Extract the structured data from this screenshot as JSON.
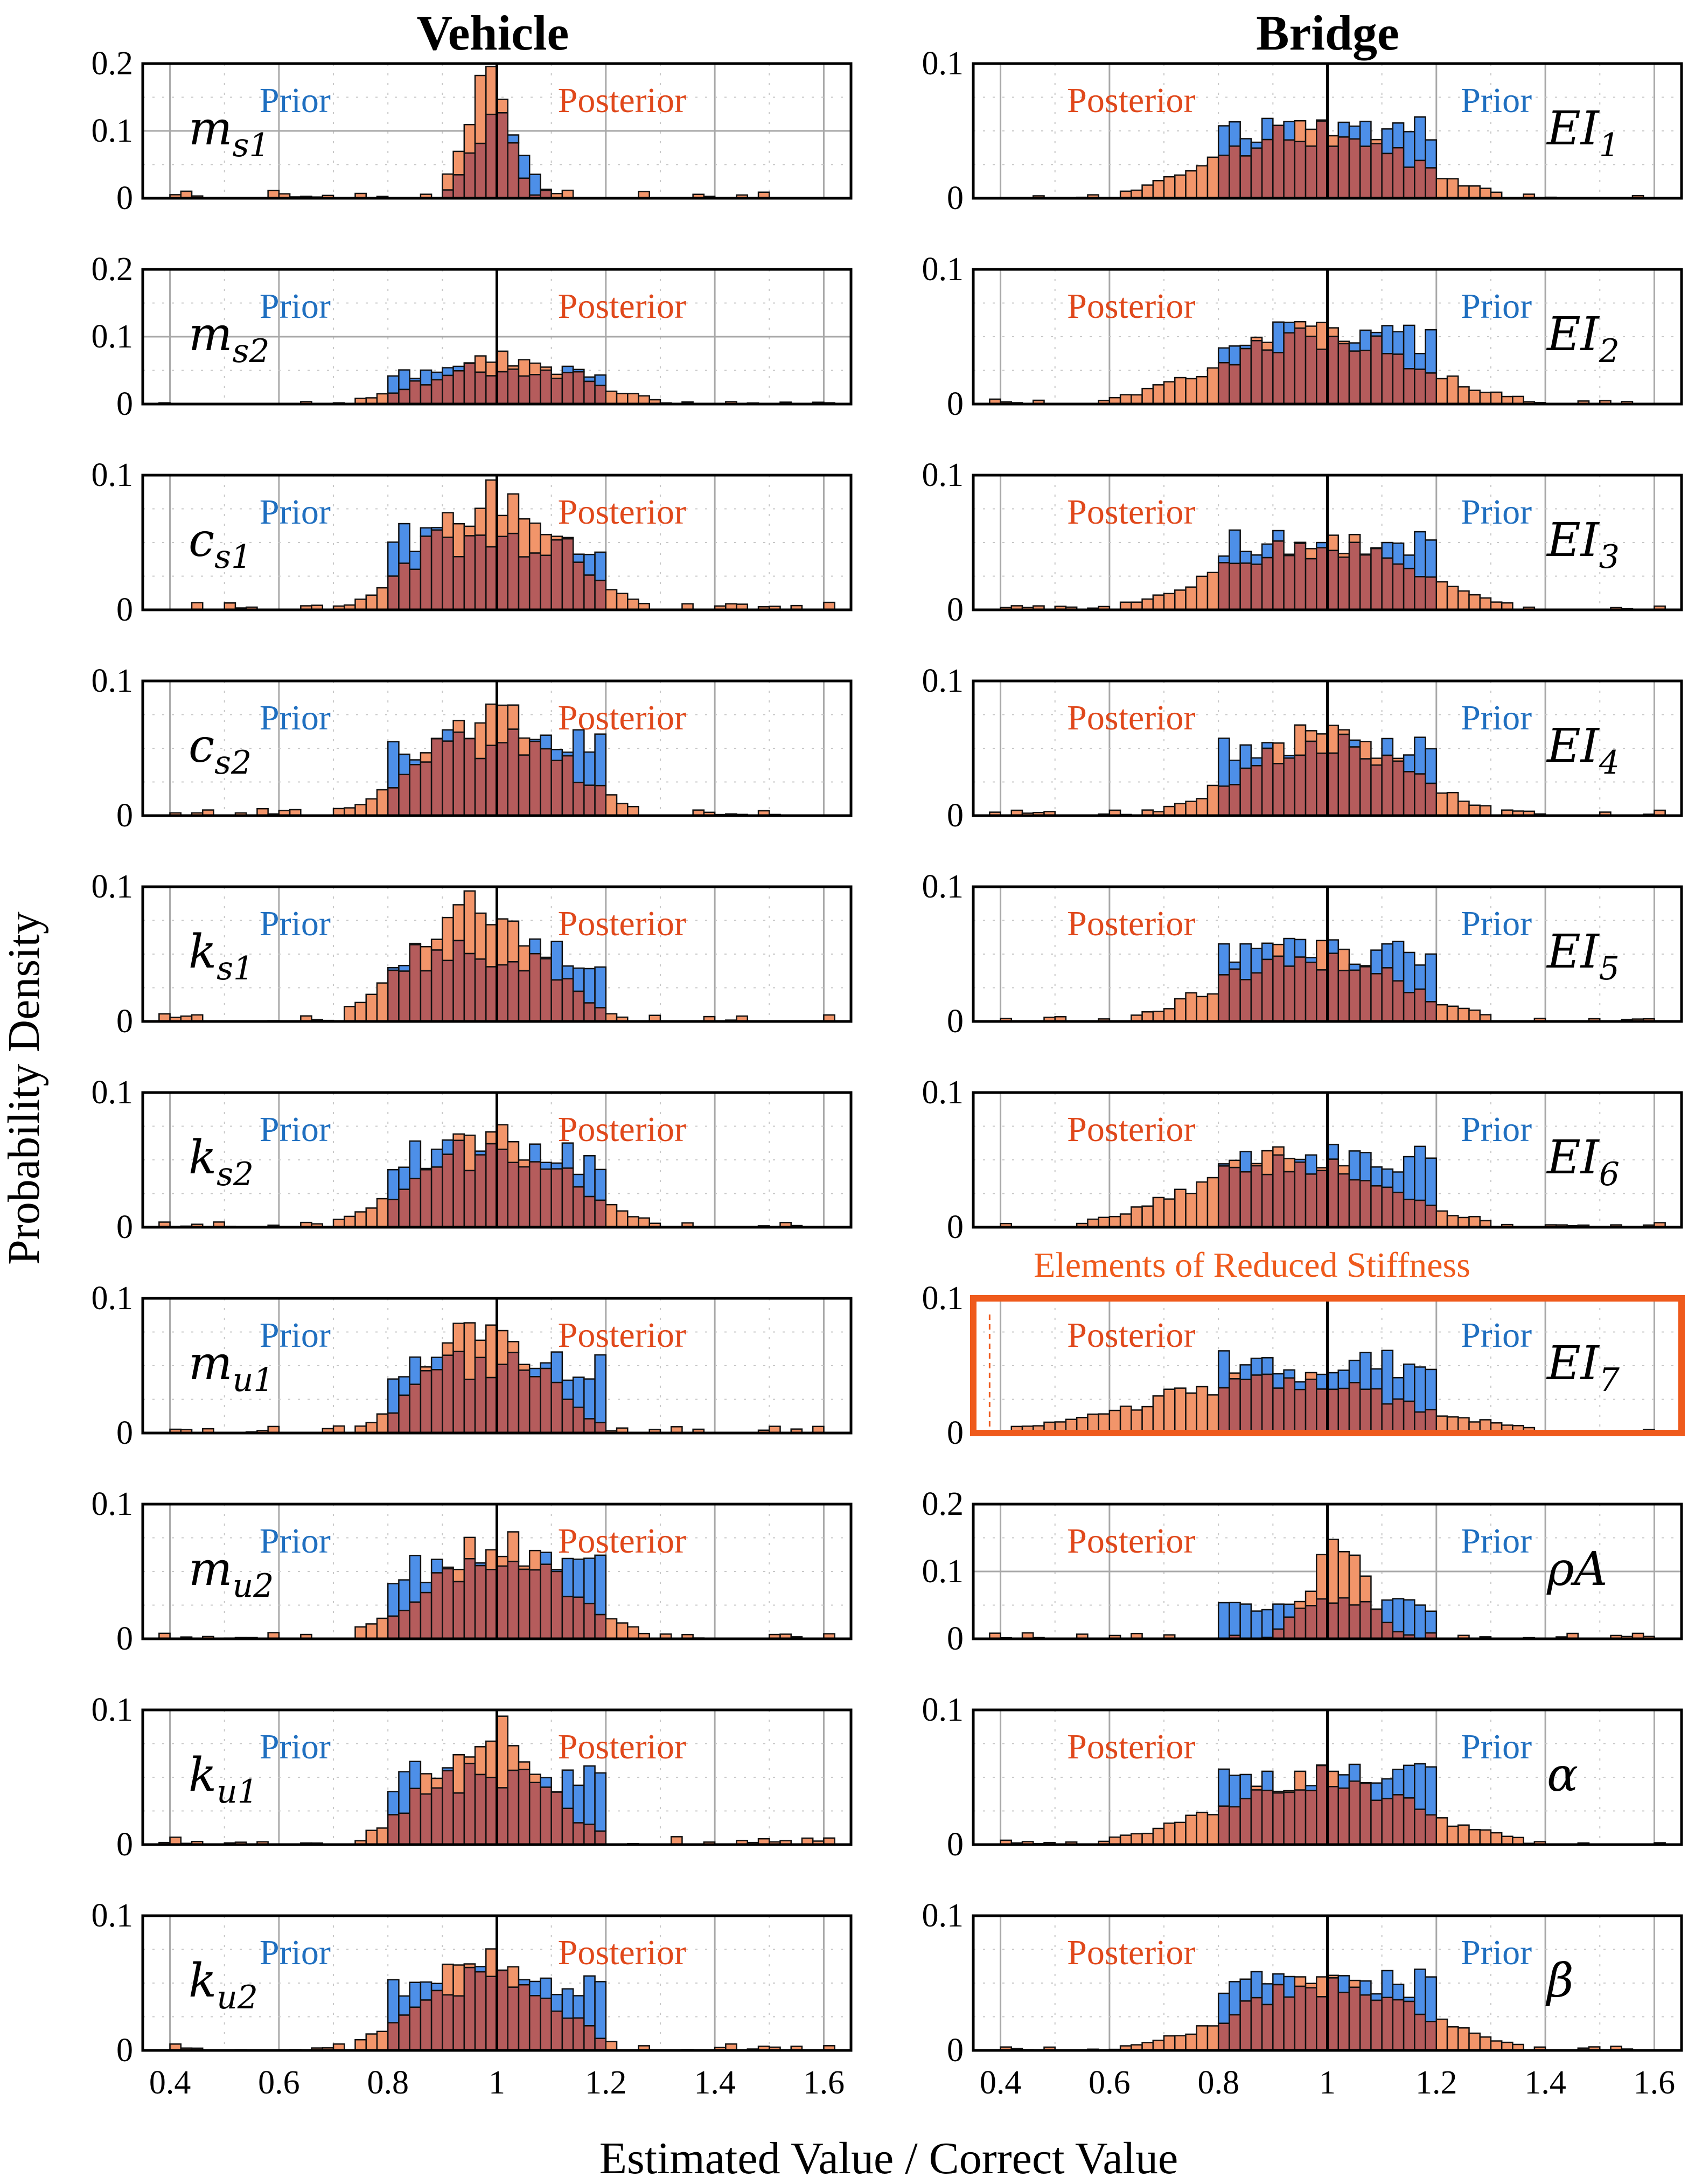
{
  "figure": {
    "columns": [
      {
        "key": "vehicle",
        "title": "Vehicle"
      },
      {
        "key": "bridge",
        "title": "Bridge"
      }
    ],
    "xlabel": "Estimated Value / Correct Value",
    "ylabel": "Probability Density",
    "highlight_label": "Elements of Reduced Stiffness"
  },
  "colors": {
    "prior": "#4d8fe8",
    "posterior": "#f2956a",
    "overlap": "#b55c5c",
    "prior_text": "#1f6fc0",
    "posterior_text": "#e0481b",
    "highlight": "#ef5a1c",
    "grid": "#a8a8a8"
  },
  "chart_data": {
    "type": "bar",
    "subtype": "overlaid histograms",
    "x_ticks": [
      0.4,
      0.6,
      0.8,
      1,
      1.2,
      1.4,
      1.6
    ],
    "x_tick_labels": [
      "0.4",
      "0.6",
      "0.8",
      "1",
      "1.2",
      "1.4",
      "1.6"
    ],
    "xlim": [
      0.35,
      1.65
    ],
    "panels": [
      {
        "col": 0,
        "row": 0,
        "param": "m",
        "sub": "s1",
        "prior_label": "Prior",
        "posterior_label": "Posterior",
        "ylim": [
          0,
          0.2
        ],
        "y_ticks": [
          "0.2",
          "0.1",
          "0"
        ],
        "prior": {
          "min": 0.9,
          "max": 1.1,
          "shape": "tri",
          "peak": 0.125
        },
        "posterior": {
          "mean": 0.98,
          "sd": 0.04,
          "peak": 0.17
        }
      },
      {
        "col": 0,
        "row": 1,
        "param": "m",
        "sub": "s2",
        "prior_label": "Prior",
        "posterior_label": "Posterior",
        "ylim": [
          0,
          0.2
        ],
        "y_ticks": [
          "0.2",
          "0.1",
          "0"
        ],
        "prior": {
          "min": 0.8,
          "max": 1.2,
          "shape": "flat",
          "peak": 0.05
        },
        "posterior": {
          "mean": 1.02,
          "sd": 0.13,
          "peak": 0.068
        }
      },
      {
        "col": 0,
        "row": 2,
        "param": "c",
        "sub": "s1",
        "prior_label": "Prior",
        "posterior_label": "Posterior",
        "ylim": [
          0,
          0.1
        ],
        "y_ticks": [
          "0.1",
          "0"
        ],
        "prior": {
          "min": 0.8,
          "max": 1.2,
          "shape": "flat",
          "peak": 0.052
        },
        "posterior": {
          "mean": 1.0,
          "sd": 0.12,
          "peak": 0.082
        }
      },
      {
        "col": 0,
        "row": 3,
        "param": "c",
        "sub": "s2",
        "prior_label": "Prior",
        "posterior_label": "Posterior",
        "ylim": [
          0,
          0.1
        ],
        "y_ticks": [
          "0.1",
          "0"
        ],
        "prior": {
          "min": 0.8,
          "max": 1.2,
          "shape": "flat",
          "peak": 0.052
        },
        "posterior": {
          "mean": 0.99,
          "sd": 0.12,
          "peak": 0.075
        }
      },
      {
        "col": 0,
        "row": 4,
        "param": "k",
        "sub": "s1",
        "prior_label": "Prior",
        "posterior_label": "Posterior",
        "ylim": [
          0,
          0.1
        ],
        "y_ticks": [
          "0.1",
          "0"
        ],
        "prior": {
          "min": 0.8,
          "max": 1.2,
          "shape": "flat",
          "peak": 0.05
        },
        "posterior": {
          "mean": 0.96,
          "sd": 0.11,
          "peak": 0.088
        }
      },
      {
        "col": 0,
        "row": 5,
        "param": "k",
        "sub": "s2",
        "prior_label": "Prior",
        "posterior_label": "Posterior",
        "ylim": [
          0,
          0.1
        ],
        "y_ticks": [
          "0.1",
          "0"
        ],
        "prior": {
          "min": 0.8,
          "max": 1.2,
          "shape": "flat",
          "peak": 0.052
        },
        "posterior": {
          "mean": 0.99,
          "sd": 0.13,
          "peak": 0.066
        }
      },
      {
        "col": 0,
        "row": 6,
        "param": "m",
        "sub": "u1",
        "prior_label": "Prior",
        "posterior_label": "Posterior",
        "ylim": [
          0,
          0.1
        ],
        "y_ticks": [
          "0.1",
          "0"
        ],
        "prior": {
          "min": 0.8,
          "max": 1.2,
          "shape": "flat",
          "peak": 0.05
        },
        "posterior": {
          "mean": 0.98,
          "sd": 0.1,
          "peak": 0.078
        }
      },
      {
        "col": 0,
        "row": 7,
        "param": "m",
        "sub": "u2",
        "prior_label": "Prior",
        "posterior_label": "Posterior",
        "ylim": [
          0,
          0.1
        ],
        "y_ticks": [
          "0.1",
          "0"
        ],
        "prior": {
          "min": 0.8,
          "max": 1.2,
          "shape": "flat",
          "peak": 0.052
        },
        "posterior": {
          "mean": 1.0,
          "sd": 0.12,
          "peak": 0.07
        }
      },
      {
        "col": 0,
        "row": 8,
        "param": "k",
        "sub": "u1",
        "prior_label": "Prior",
        "posterior_label": "Posterior",
        "ylim": [
          0,
          0.1
        ],
        "y_ticks": [
          "0.1",
          "0"
        ],
        "prior": {
          "min": 0.8,
          "max": 1.2,
          "shape": "flat",
          "peak": 0.05
        },
        "posterior": {
          "mean": 0.98,
          "sd": 0.1,
          "peak": 0.085
        }
      },
      {
        "col": 0,
        "row": 9,
        "param": "k",
        "sub": "u2",
        "prior_label": "Prior",
        "posterior_label": "Posterior",
        "ylim": [
          0,
          0.1
        ],
        "y_ticks": [
          "0.1",
          "0"
        ],
        "prior": {
          "min": 0.8,
          "max": 1.2,
          "shape": "flat",
          "peak": 0.05
        },
        "posterior": {
          "mean": 0.98,
          "sd": 0.11,
          "peak": 0.068
        }
      },
      {
        "col": 1,
        "row": 0,
        "param": "EI",
        "sub": "1",
        "prior_label": "Prior",
        "posterior_label": "Posterior",
        "ylim": [
          0,
          0.1
        ],
        "y_ticks": [
          "0.1",
          "0"
        ],
        "prior": {
          "min": 0.8,
          "max": 1.2,
          "shape": "flat",
          "peak": 0.05
        },
        "posterior": {
          "mean": 0.97,
          "sd": 0.16,
          "peak": 0.052
        }
      },
      {
        "col": 1,
        "row": 1,
        "param": "EI",
        "sub": "2",
        "prior_label": "Prior",
        "posterior_label": "Posterior",
        "ylim": [
          0,
          0.1
        ],
        "y_ticks": [
          "0.1",
          "0"
        ],
        "prior": {
          "min": 0.8,
          "max": 1.2,
          "shape": "flat",
          "peak": 0.05
        },
        "posterior": {
          "mean": 0.98,
          "sd": 0.17,
          "peak": 0.052
        }
      },
      {
        "col": 1,
        "row": 2,
        "param": "EI",
        "sub": "3",
        "prior_label": "Prior",
        "posterior_label": "Posterior",
        "ylim": [
          0,
          0.1
        ],
        "y_ticks": [
          "0.1",
          "0"
        ],
        "prior": {
          "min": 0.8,
          "max": 1.2,
          "shape": "flat",
          "peak": 0.05
        },
        "posterior": {
          "mean": 0.98,
          "sd": 0.16,
          "peak": 0.052
        }
      },
      {
        "col": 1,
        "row": 3,
        "param": "EI",
        "sub": "4",
        "prior_label": "Prior",
        "posterior_label": "Posterior",
        "ylim": [
          0,
          0.1
        ],
        "y_ticks": [
          "0.1",
          "0"
        ],
        "prior": {
          "min": 0.8,
          "max": 1.2,
          "shape": "flat",
          "peak": 0.05
        },
        "posterior": {
          "mean": 1.0,
          "sd": 0.14,
          "peak": 0.06
        }
      },
      {
        "col": 1,
        "row": 4,
        "param": "EI",
        "sub": "5",
        "prior_label": "Prior",
        "posterior_label": "Posterior",
        "ylim": [
          0,
          0.1
        ],
        "y_ticks": [
          "0.1",
          "0"
        ],
        "prior": {
          "min": 0.8,
          "max": 1.2,
          "shape": "flat",
          "peak": 0.05
        },
        "posterior": {
          "mean": 0.97,
          "sd": 0.15,
          "peak": 0.052
        }
      },
      {
        "col": 1,
        "row": 5,
        "param": "EI",
        "sub": "6",
        "prior_label": "Prior",
        "posterior_label": "Posterior",
        "ylim": [
          0,
          0.1
        ],
        "y_ticks": [
          "0.1",
          "0"
        ],
        "prior": {
          "min": 0.8,
          "max": 1.2,
          "shape": "flat",
          "peak": 0.05
        },
        "posterior": {
          "mean": 0.93,
          "sd": 0.17,
          "peak": 0.05
        }
      },
      {
        "col": 1,
        "row": 6,
        "param": "EI",
        "sub": "7",
        "prior_label": "Prior",
        "posterior_label": "Posterior",
        "highlight": true,
        "ylim": [
          0,
          0.1
        ],
        "y_ticks": [
          "0.1",
          "0"
        ],
        "prior": {
          "min": 0.8,
          "max": 1.2,
          "shape": "flat",
          "peak": 0.05
        },
        "posterior": {
          "mean": 0.9,
          "sd": 0.22,
          "peak": 0.04
        }
      },
      {
        "col": 1,
        "row": 7,
        "param": "ρA",
        "sub": "",
        "prior_label": "Prior",
        "posterior_label": "Posterior",
        "ylim": [
          0,
          0.2
        ],
        "y_ticks": [
          "0.2",
          "0.1",
          "0"
        ],
        "prior": {
          "min": 0.8,
          "max": 1.2,
          "shape": "flat",
          "peak": 0.05
        },
        "posterior": {
          "mean": 1.02,
          "sd": 0.05,
          "peak": 0.14
        }
      },
      {
        "col": 1,
        "row": 8,
        "param": "α",
        "sub": "",
        "prior_label": "Prior",
        "posterior_label": "Posterior",
        "ylim": [
          0,
          0.1
        ],
        "y_ticks": [
          "0.1",
          "0"
        ],
        "prior": {
          "min": 0.8,
          "max": 1.2,
          "shape": "flat",
          "peak": 0.05
        },
        "posterior": {
          "mean": 0.98,
          "sd": 0.17,
          "peak": 0.05
        }
      },
      {
        "col": 1,
        "row": 9,
        "param": "β",
        "sub": "",
        "prior_label": "Prior",
        "posterior_label": "Posterior",
        "ylim": [
          0,
          0.1
        ],
        "y_ticks": [
          "0.1",
          "0"
        ],
        "prior": {
          "min": 0.8,
          "max": 1.2,
          "shape": "flat",
          "peak": 0.05
        },
        "posterior": {
          "mean": 1.0,
          "sd": 0.16,
          "peak": 0.05
        }
      }
    ]
  }
}
